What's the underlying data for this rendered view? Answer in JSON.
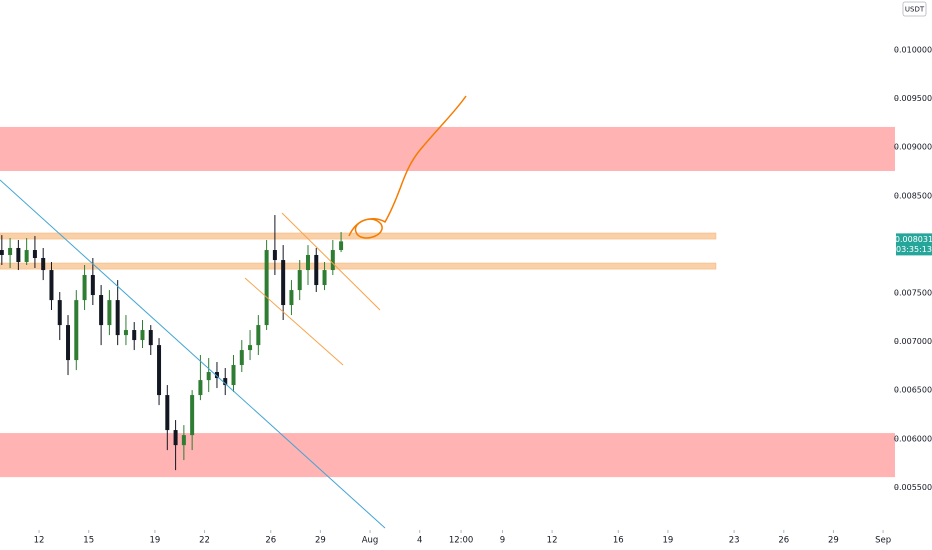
{
  "chart_data": {
    "type": "candlestick",
    "quote": "USDT",
    "up_color": "#2e7d32",
    "down_color": "#131722",
    "x": [
      9.75,
      10.25,
      10.75,
      11.25,
      11.75,
      12.25,
      12.75,
      13.25,
      13.75,
      14.25,
      14.75,
      15.25,
      15.75,
      16.25,
      16.75,
      17.25,
      17.75,
      18.25,
      18.75,
      19.25,
      19.75,
      20.25,
      20.75,
      21.25,
      21.75,
      22.25,
      22.75,
      23.25,
      23.75,
      24.25,
      24.75,
      25.25,
      25.75,
      26.25,
      26.75,
      27.25,
      27.75,
      28.25,
      28.75,
      29.25,
      29.75,
      30.25
    ],
    "open": [
      0.007942,
      0.007891,
      0.007963,
      0.007819,
      0.007942,
      0.00786,
      0.007736,
      0.007427,
      0.00717,
      0.00681,
      0.007427,
      0.007685,
      0.007479,
      0.00717,
      0.007427,
      0.007067,
      0.007119,
      0.007016,
      0.007119,
      0.006964,
      0.00645,
      0.00609,
      0.005935,
      0.006038,
      0.00645,
      0.006604,
      0.006687,
      0.006625,
      0.006553,
      0.006759,
      0.006913,
      0.006964,
      0.00717,
      0.007942,
      0.007839,
      0.007376,
      0.00753,
      0.007736,
      0.007891,
      0.007582,
      0.007736,
      0.007942
    ],
    "high": [
      0.008096,
      0.008065,
      0.008045,
      0.008065,
      0.008086,
      0.007963,
      0.007819,
      0.00751,
      0.007273,
      0.00753,
      0.007788,
      0.00786,
      0.007582,
      0.00753,
      0.007633,
      0.007273,
      0.007201,
      0.007222,
      0.00717,
      0.007036,
      0.006553,
      0.006193,
      0.006141,
      0.006501,
      0.006862,
      0.006831,
      0.00679,
      0.006728,
      0.006862,
      0.007016,
      0.007119,
      0.007273,
      0.008045,
      0.008302,
      0.007993,
      0.007633,
      0.007839,
      0.007993,
      0.007963,
      0.007819,
      0.008045,
      0.008127
    ],
    "low": [
      0.007788,
      0.007757,
      0.007736,
      0.007788,
      0.007757,
      0.007633,
      0.007325,
      0.007016,
      0.006656,
      0.006707,
      0.007325,
      0.007376,
      0.006964,
      0.007067,
      0.006964,
      0.006964,
      0.006913,
      0.006934,
      0.006862,
      0.006347,
      0.005884,
      0.005678,
      0.005781,
      0.005884,
      0.006398,
      0.006481,
      0.006522,
      0.00645,
      0.006481,
      0.006687,
      0.00681,
      0.006862,
      0.007119,
      0.007685,
      0.007222,
      0.007273,
      0.007427,
      0.007582,
      0.00751,
      0.00753,
      0.007685,
      0.007921
    ],
    "close": [
      0.007891,
      0.007963,
      0.007819,
      0.007942,
      0.00786,
      0.007736,
      0.007427,
      0.00717,
      0.00681,
      0.007427,
      0.007685,
      0.007479,
      0.00717,
      0.007427,
      0.007067,
      0.007119,
      0.007016,
      0.007119,
      0.006964,
      0.00645,
      0.00609,
      0.005935,
      0.006038,
      0.00645,
      0.006604,
      0.006687,
      0.006625,
      0.006553,
      0.006759,
      0.006913,
      0.006964,
      0.00717,
      0.007942,
      0.007839,
      0.007376,
      0.00753,
      0.007736,
      0.007891,
      0.007582,
      0.007736,
      0.007942,
      0.008031
    ],
    "last_price": 0.008031,
    "last_color": "#26a69a",
    "countdown": "03:35:13",
    "zones": [
      {
        "low": 0.008755,
        "high": 0.009208,
        "color": "#ffb3b3"
      },
      {
        "low": 0.005606,
        "high": 0.006059,
        "color": "#ffb3b3"
      },
      {
        "low": 0.008055,
        "high": 0.008117,
        "color": "#f9d0a8",
        "x_end": 52.9
      },
      {
        "low": 0.007746,
        "high": 0.007808,
        "color": "#f9d0a8",
        "x_end": 52.9
      }
    ],
    "xlim": [
      9.64,
      63.72
    ],
    "xticks": [
      12,
      15,
      19,
      22,
      26,
      29,
      {
        "value": 32,
        "label": "Aug"
      },
      {
        "value": 35,
        "label": "4"
      },
      {
        "value": 37.5,
        "label": "12:00"
      },
      {
        "value": 40,
        "label": "9"
      },
      {
        "value": 43,
        "label": "12"
      },
      {
        "value": 47,
        "label": "16"
      },
      {
        "value": 50,
        "label": "19"
      },
      {
        "value": 54,
        "label": "23"
      },
      {
        "value": 57,
        "label": "26"
      },
      {
        "value": 60,
        "label": "29"
      },
      {
        "value": 63,
        "label": "Sep"
      }
    ],
    "ylim": [
      0.005062,
      0.010514
    ],
    "yticks": [
      {
        "value": 0.0055,
        "label": "0.005500"
      },
      {
        "value": 0.006,
        "label": "0.006000"
      },
      {
        "value": 0.0065,
        "label": "0.006500"
      },
      {
        "value": 0.007,
        "label": "0.007000"
      },
      {
        "value": 0.0075,
        "label": "0.007500"
      },
      {
        "value": 0.0085,
        "label": "0.008500"
      },
      {
        "value": 0.009,
        "label": "0.009000"
      },
      {
        "value": 0.0095,
        "label": "0.009500"
      },
      {
        "value": 0.01,
        "label": "0.010000"
      }
    ],
    "grid": false
  }
}
